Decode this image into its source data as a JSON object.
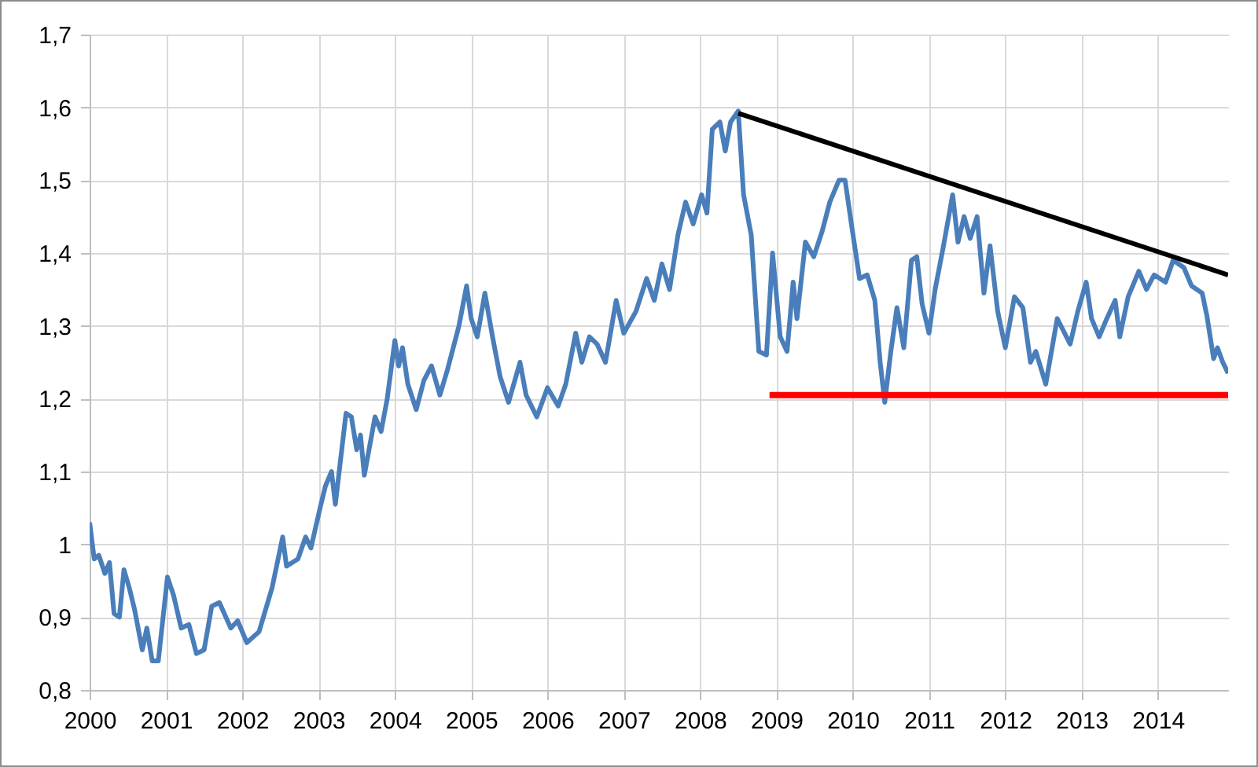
{
  "chart_data": {
    "type": "line",
    "xlim": [
      2000,
      2014.92
    ],
    "xticks": [
      2000,
      2001,
      2002,
      2003,
      2004,
      2005,
      2006,
      2007,
      2008,
      2009,
      2010,
      2011,
      2012,
      2013,
      2014
    ],
    "ylim": [
      0.8,
      1.7
    ],
    "yticks": [
      {
        "value": 0.8,
        "label": "0,8"
      },
      {
        "value": 0.9,
        "label": "0,9"
      },
      1,
      {
        "value": 1.1,
        "label": "1,1"
      },
      {
        "value": 1.2,
        "label": "1,2"
      },
      {
        "value": 1.3,
        "label": "1,3"
      },
      {
        "value": 1.4,
        "label": "1,4"
      },
      {
        "value": 1.5,
        "label": "1,5"
      },
      {
        "value": 1.6,
        "label": "1,6"
      },
      {
        "value": 1.7,
        "label": "1,7"
      }
    ],
    "grid": true,
    "series": [
      {
        "color": "#4a7ebb",
        "x": [
          2000.0,
          2000.06,
          2000.12,
          2000.2,
          2000.26,
          2000.32,
          2000.39,
          2000.45,
          2000.52,
          2000.59,
          2000.69,
          2000.75,
          2000.82,
          2000.9,
          2001.02,
          2001.1,
          2001.2,
          2001.3,
          2001.4,
          2001.5,
          2001.6,
          2001.7,
          2001.85,
          2001.94,
          2002.06,
          2002.22,
          2002.39,
          2002.53,
          2002.58,
          2002.73,
          2002.83,
          2002.9,
          2003.02,
          2003.09,
          2003.17,
          2003.22,
          2003.36,
          2003.43,
          2003.5,
          2003.55,
          2003.6,
          2003.74,
          2003.82,
          2003.9,
          2004.0,
          2004.05,
          2004.1,
          2004.17,
          2004.28,
          2004.38,
          2004.48,
          2004.59,
          2004.69,
          2004.84,
          2004.94,
          2005.0,
          2005.08,
          2005.18,
          2005.28,
          2005.38,
          2005.49,
          2005.64,
          2005.72,
          2005.86,
          2006.0,
          2006.14,
          2006.24,
          2006.37,
          2006.45,
          2006.55,
          2006.65,
          2006.76,
          2006.9,
          2007.0,
          2007.16,
          2007.3,
          2007.4,
          2007.5,
          2007.6,
          2007.71,
          2007.81,
          2007.91,
          2008.02,
          2008.09,
          2008.16,
          2008.26,
          2008.33,
          2008.4,
          2008.5,
          2008.57,
          2008.67,
          2008.77,
          2008.87,
          2008.95,
          2009.05,
          2009.14,
          2009.22,
          2009.27,
          2009.38,
          2009.49,
          2009.6,
          2009.7,
          2009.82,
          2009.9,
          2009.99,
          2010.09,
          2010.19,
          2010.29,
          2010.36,
          2010.42,
          2010.5,
          2010.58,
          2010.67,
          2010.77,
          2010.84,
          2010.91,
          2011.0,
          2011.08,
          2011.19,
          2011.31,
          2011.38,
          2011.46,
          2011.54,
          2011.63,
          2011.72,
          2011.8,
          2011.9,
          2012.0,
          2012.12,
          2012.23,
          2012.33,
          2012.4,
          2012.53,
          2012.68,
          2012.85,
          2012.95,
          2013.06,
          2013.13,
          2013.23,
          2013.33,
          2013.44,
          2013.5,
          2013.61,
          2013.75,
          2013.85,
          2013.95,
          2014.1,
          2014.2,
          2014.34,
          2014.44,
          2014.58,
          2014.64,
          2014.73,
          2014.78,
          2014.85,
          2014.92
        ],
        "values": [
          1.03,
          0.98,
          0.985,
          0.96,
          0.975,
          0.905,
          0.9,
          0.965,
          0.94,
          0.91,
          0.855,
          0.885,
          0.84,
          0.84,
          0.955,
          0.93,
          0.885,
          0.89,
          0.85,
          0.855,
          0.915,
          0.92,
          0.885,
          0.895,
          0.865,
          0.88,
          0.94,
          1.01,
          0.97,
          0.98,
          1.01,
          0.995,
          1.05,
          1.08,
          1.1,
          1.055,
          1.18,
          1.175,
          1.13,
          1.15,
          1.095,
          1.175,
          1.155,
          1.2,
          1.28,
          1.245,
          1.27,
          1.22,
          1.185,
          1.225,
          1.245,
          1.205,
          1.24,
          1.3,
          1.355,
          1.31,
          1.285,
          1.345,
          1.285,
          1.23,
          1.195,
          1.25,
          1.205,
          1.175,
          1.215,
          1.19,
          1.22,
          1.29,
          1.25,
          1.285,
          1.275,
          1.25,
          1.335,
          1.29,
          1.32,
          1.365,
          1.335,
          1.385,
          1.35,
          1.425,
          1.47,
          1.44,
          1.48,
          1.455,
          1.57,
          1.58,
          1.54,
          1.58,
          1.595,
          1.48,
          1.425,
          1.265,
          1.26,
          1.4,
          1.285,
          1.265,
          1.36,
          1.31,
          1.415,
          1.395,
          1.43,
          1.47,
          1.5,
          1.5,
          1.435,
          1.365,
          1.37,
          1.335,
          1.25,
          1.195,
          1.265,
          1.325,
          1.27,
          1.39,
          1.395,
          1.33,
          1.29,
          1.35,
          1.41,
          1.48,
          1.415,
          1.45,
          1.42,
          1.45,
          1.345,
          1.41,
          1.32,
          1.27,
          1.34,
          1.325,
          1.25,
          1.265,
          1.22,
          1.31,
          1.275,
          1.32,
          1.36,
          1.31,
          1.285,
          1.31,
          1.335,
          1.285,
          1.34,
          1.375,
          1.35,
          1.37,
          1.36,
          1.39,
          1.38,
          1.355,
          1.345,
          1.315,
          1.255,
          1.27,
          1.25,
          1.235
        ]
      },
      {
        "type": "line",
        "color": "#000000",
        "x": [
          2008.5,
          2014.92
        ],
        "values": [
          1.592,
          1.37
        ]
      },
      {
        "type": "line",
        "color": "#ff0000",
        "x": [
          2008.91,
          2014.92
        ],
        "values": [
          1.205,
          1.205
        ]
      }
    ]
  }
}
